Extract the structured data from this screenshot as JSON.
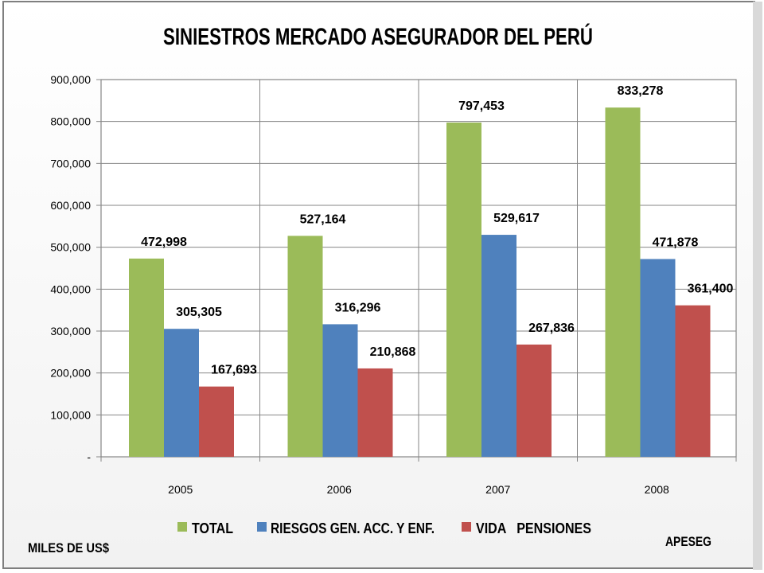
{
  "chart_data": {
    "type": "bar",
    "title": "SINIESTROS MERCADO  ASEGURADOR DEL  PERÚ",
    "categories": [
      "2005",
      "2006",
      "2007",
      "2008"
    ],
    "series": [
      {
        "name": "TOTAL",
        "color": "#9BBB59",
        "values": [
          472998,
          527164,
          797453,
          833278
        ]
      },
      {
        "name": "RIESGOS GEN. ACC. Y ENF.",
        "color": "#4F81BD",
        "values": [
          305305,
          316296,
          529617,
          471878
        ]
      },
      {
        "name": "VIDA   PENSIONES",
        "color": "#C0504D",
        "values": [
          167693,
          210868,
          267836,
          361400
        ]
      }
    ],
    "data_labels": [
      [
        "472,998",
        "527,164",
        "797,453",
        "833,278"
      ],
      [
        "305,305",
        "316,296",
        "529,617",
        "471,878"
      ],
      [
        "167,693",
        "210,868",
        "267,836",
        "361,400"
      ]
    ],
    "ylim": [
      0,
      900000
    ],
    "y_ticks": [
      0,
      100000,
      200000,
      300000,
      400000,
      500000,
      600000,
      700000,
      800000,
      900000
    ],
    "y_tick_labels": [
      "-",
      "100,000",
      "200,000",
      "300,000",
      "400,000",
      "500,000",
      "600,000",
      "700,000",
      "800,000",
      "900,000"
    ],
    "grid": true,
    "legend_position": "bottom",
    "unit_note": "MILES DE US$",
    "source_note": "APESEG"
  }
}
